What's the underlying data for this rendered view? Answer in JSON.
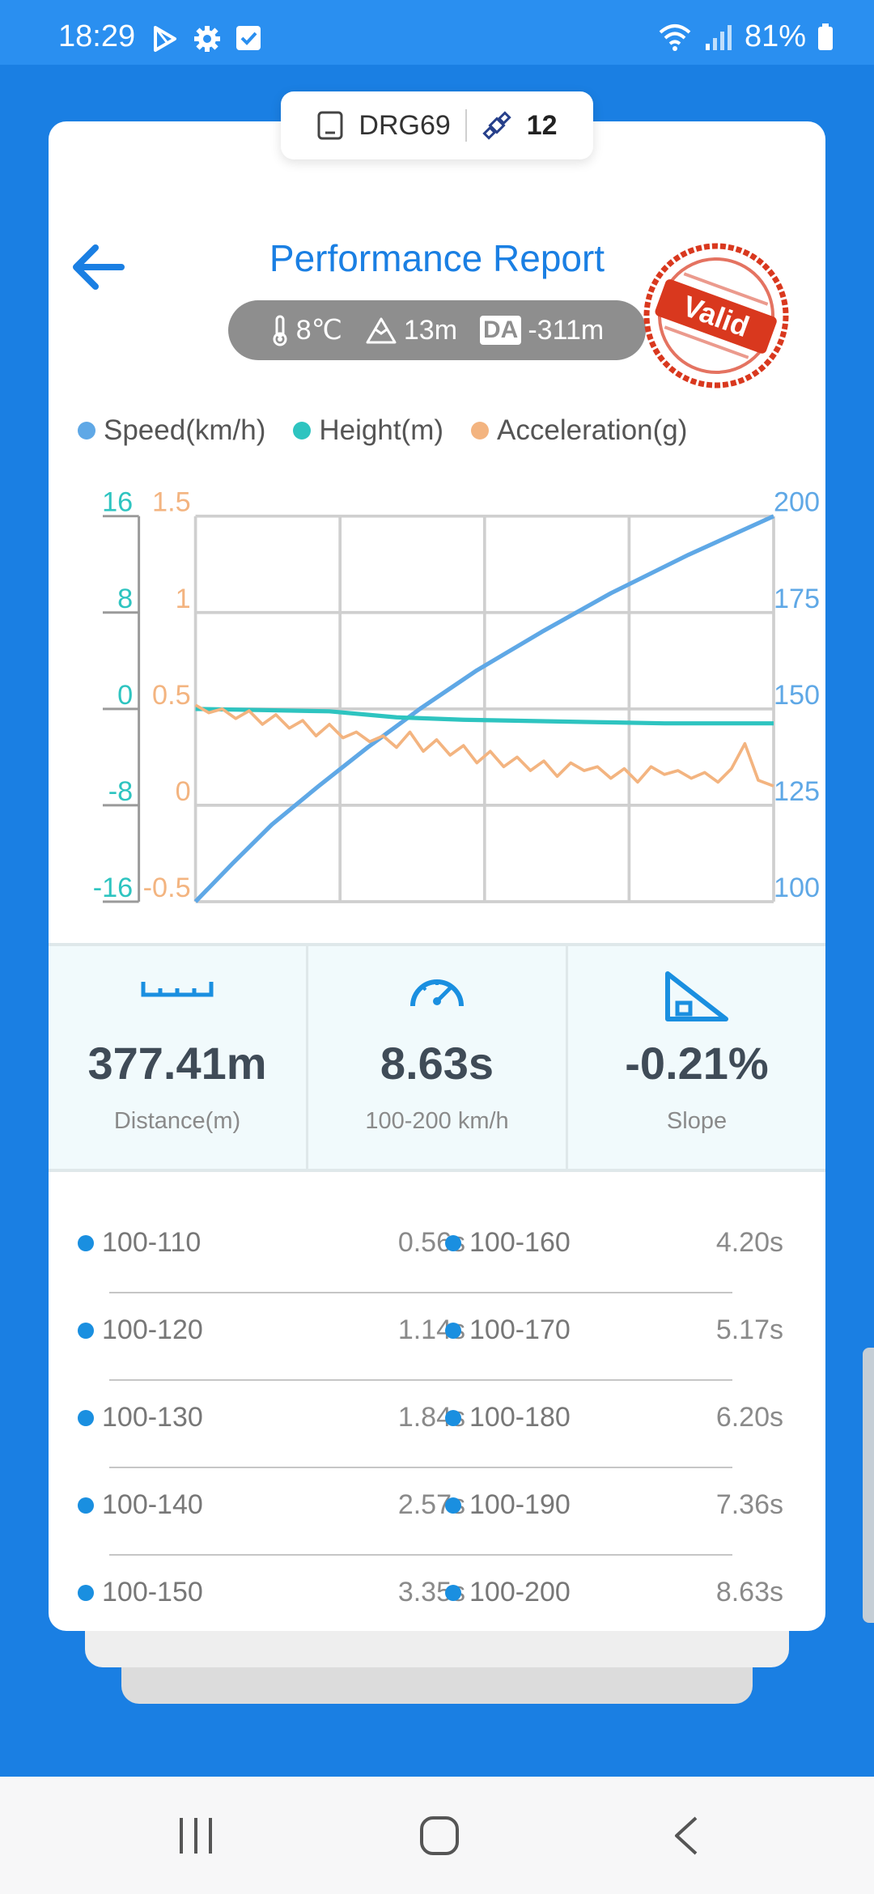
{
  "status_bar": {
    "time": "18:29",
    "battery": "81%"
  },
  "device": {
    "name": "DRG69",
    "satellites": "12"
  },
  "header": {
    "title": "Performance Report",
    "stamp_text": "Valid"
  },
  "environment": {
    "temperature": "8℃",
    "altitude": "13m",
    "da_label": "DA",
    "density_altitude": "-311m"
  },
  "colors": {
    "accent": "#1a7fe3",
    "speed": "#5fa8e6",
    "height": "#2ec4c0",
    "acceleration": "#f3b480",
    "stamp": "#d9381e"
  },
  "chart_data": {
    "type": "line",
    "legend": [
      "Speed(km/h)",
      "Height(m)",
      "Acceleration(g)"
    ],
    "axes": {
      "height": {
        "ticks": [
          "16",
          "8",
          "0",
          "-8",
          "-16"
        ],
        "range": [
          -16,
          16
        ]
      },
      "acceleration": {
        "ticks": [
          "1.5",
          "1",
          "0.5",
          "0",
          "-0.5"
        ],
        "range": [
          -0.5,
          1.5
        ]
      },
      "speed": {
        "ticks": [
          "200",
          "175",
          "150",
          "125",
          "100"
        ],
        "range": [
          100,
          200
        ]
      }
    },
    "x_range": [
      0,
      8.63
    ],
    "grid": true,
    "series": [
      {
        "name": "Speed(km/h)",
        "axis": "speed",
        "x": [
          0,
          0.56,
          1.14,
          1.84,
          2.57,
          3.35,
          4.2,
          5.17,
          6.2,
          7.36,
          8.63
        ],
        "y": [
          100,
          110,
          120,
          130,
          140,
          150,
          160,
          170,
          180,
          190,
          200
        ]
      },
      {
        "name": "Height(m)",
        "axis": "height",
        "x": [
          0,
          1,
          2,
          3,
          4,
          5,
          6,
          7,
          8,
          8.63
        ],
        "y": [
          0.0,
          -0.1,
          -0.2,
          -0.7,
          -0.9,
          -1.0,
          -1.1,
          -1.2,
          -1.2,
          -1.2
        ]
      },
      {
        "name": "Acceleration(g)",
        "axis": "acceleration",
        "x": [
          0,
          0.2,
          0.4,
          0.6,
          0.8,
          1.0,
          1.2,
          1.4,
          1.6,
          1.8,
          2.0,
          2.2,
          2.4,
          2.6,
          2.8,
          3.0,
          3.2,
          3.4,
          3.6,
          3.8,
          4.0,
          4.2,
          4.4,
          4.6,
          4.8,
          5.0,
          5.2,
          5.4,
          5.6,
          5.8,
          6.0,
          6.2,
          6.4,
          6.6,
          6.8,
          7.0,
          7.2,
          7.4,
          7.6,
          7.8,
          8.0,
          8.2,
          8.4,
          8.63
        ],
        "y": [
          0.52,
          0.48,
          0.5,
          0.45,
          0.49,
          0.42,
          0.47,
          0.4,
          0.44,
          0.36,
          0.42,
          0.35,
          0.38,
          0.33,
          0.36,
          0.3,
          0.38,
          0.28,
          0.34,
          0.26,
          0.31,
          0.22,
          0.28,
          0.2,
          0.25,
          0.18,
          0.23,
          0.15,
          0.22,
          0.18,
          0.2,
          0.14,
          0.19,
          0.12,
          0.2,
          0.16,
          0.18,
          0.14,
          0.17,
          0.12,
          0.19,
          0.32,
          0.13,
          0.1
        ]
      }
    ]
  },
  "stats": [
    {
      "value": "377.41m",
      "label": "Distance(m)"
    },
    {
      "value": "8.63s",
      "label": "100-200 km/h"
    },
    {
      "value": "-0.21%",
      "label": "Slope"
    }
  ],
  "splits": [
    {
      "left_label": "100-110",
      "left_value": "0.56s",
      "right_label": "100-160",
      "right_value": "4.20s"
    },
    {
      "left_label": "100-120",
      "left_value": "1.14s",
      "right_label": "100-170",
      "right_value": "5.17s"
    },
    {
      "left_label": "100-130",
      "left_value": "1.84s",
      "right_label": "100-180",
      "right_value": "6.20s"
    },
    {
      "left_label": "100-140",
      "left_value": "2.57s",
      "right_label": "100-190",
      "right_value": "7.36s"
    },
    {
      "left_label": "100-150",
      "left_value": "3.35s",
      "right_label": "100-200",
      "right_value": "8.63s"
    }
  ],
  "icons": [
    "play-store-icon",
    "settings-icon",
    "checkbox-icon",
    "wifi-icon",
    "signal-icon",
    "battery-icon",
    "device-icon",
    "satellite-icon",
    "back-arrow-icon",
    "thermometer-icon",
    "mountain-icon",
    "ruler-icon",
    "speedometer-icon",
    "slope-icon",
    "recent-apps-icon",
    "home-icon",
    "nav-back-icon"
  ]
}
